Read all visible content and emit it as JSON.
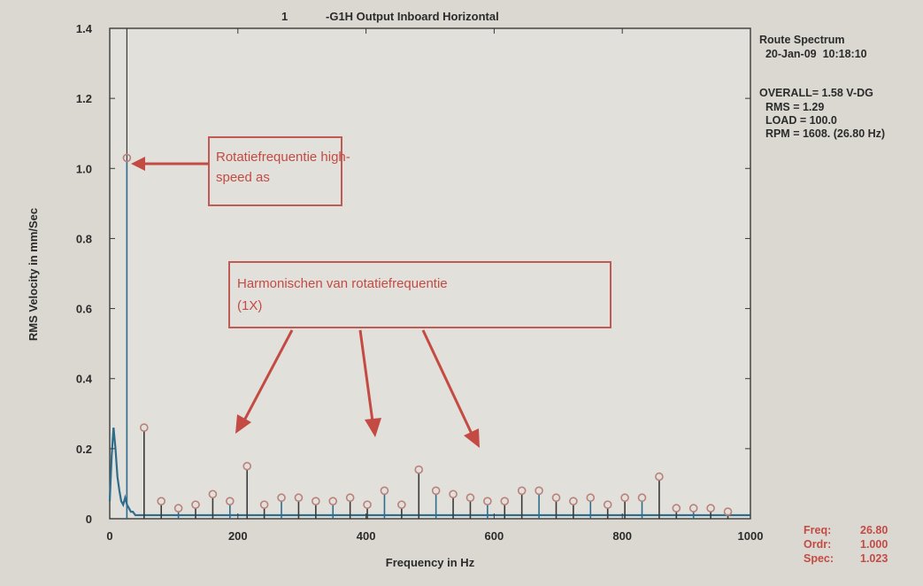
{
  "chart_data": {
    "type": "line",
    "title_prefix": "1",
    "title": "-G1H   Output Inboard Horizontal",
    "xlabel": "Frequency in Hz",
    "ylabel": "RMS Velocity in mm/Sec",
    "xlim": [
      0,
      1000
    ],
    "ylim": [
      0,
      1.4
    ],
    "xticks": [
      "0",
      "200",
      "400",
      "600",
      "800",
      "1000"
    ],
    "yticks": [
      "0",
      "0.2",
      "0.4",
      "0.6",
      "0.8",
      "1.0",
      "1.2",
      "1.4"
    ],
    "grid": false,
    "series": [
      {
        "x": [
          0,
          3,
          6,
          9,
          12,
          15,
          18,
          21,
          24,
          27,
          30,
          33,
          36,
          40,
          45,
          50,
          55,
          60,
          80,
          100,
          120,
          140,
          160,
          180,
          200,
          220,
          240,
          260,
          280,
          300,
          320,
          340,
          360,
          380,
          400,
          420,
          440,
          460,
          480,
          500,
          520,
          540,
          560,
          580,
          600,
          620,
          640,
          660,
          680,
          700,
          720,
          740,
          760,
          780,
          800,
          820,
          840,
          860,
          880,
          900,
          920,
          940,
          960,
          980,
          1000
        ],
        "values": [
          0.05,
          0.18,
          0.26,
          0.2,
          0.12,
          0.08,
          0.05,
          0.04,
          0.06,
          0.04,
          0.03,
          0.02,
          0.02,
          0.01,
          0.01,
          0.01,
          0.01,
          0.01,
          0.01,
          0.01,
          0.01,
          0.01,
          0.01,
          0.01,
          0.01,
          0.01,
          0.01,
          0.01,
          0.01,
          0.01,
          0.01,
          0.01,
          0.01,
          0.01,
          0.01,
          0.01,
          0.01,
          0.01,
          0.01,
          0.01,
          0.01,
          0.01,
          0.01,
          0.01,
          0.01,
          0.01,
          0.01,
          0.01,
          0.01,
          0.01,
          0.01,
          0.01,
          0.01,
          0.01,
          0.01,
          0.01,
          0.01,
          0.01,
          0.01,
          0.01,
          0.01,
          0.01,
          0.01,
          0.01,
          0.01
        ]
      }
    ],
    "stems": {
      "x": [
        26.8,
        53.6,
        80.4,
        107.2,
        134.0,
        160.8,
        187.6,
        214.4,
        241.2,
        268.0,
        294.8,
        321.6,
        348.4,
        375.2,
        402.0,
        428.8,
        455.6,
        482.4,
        509.2,
        536.0,
        562.8,
        589.6,
        616.4,
        643.2,
        670.0,
        696.8,
        723.6,
        750.4,
        777.2,
        804.0,
        830.8,
        857.6,
        884.4,
        911.2,
        938.0,
        964.8
      ],
      "values": [
        1.02,
        0.25,
        0.04,
        0.02,
        0.03,
        0.06,
        0.04,
        0.14,
        0.03,
        0.05,
        0.05,
        0.04,
        0.04,
        0.05,
        0.03,
        0.07,
        0.03,
        0.13,
        0.07,
        0.06,
        0.05,
        0.04,
        0.04,
        0.07,
        0.07,
        0.05,
        0.04,
        0.05,
        0.03,
        0.05,
        0.05,
        0.11,
        0.02,
        0.02,
        0.02,
        0.01
      ]
    },
    "cursor_x": 26.8
  },
  "info": {
    "lines": [
      "Route Spectrum",
      "  20-Jan-09  10:18:10",
      "",
      "OVERALL= 1.58 V-DG",
      "  RMS = 1.29",
      "  LOAD = 100.0",
      "  RPM = 1608. (26.80 Hz)"
    ]
  },
  "cursor_readout": {
    "labels": [
      "Freq:",
      "Ordr:",
      "Spec:"
    ],
    "values": [
      "26.80",
      "1.000",
      "1.023"
    ]
  },
  "annotations": [
    {
      "text_lines": [
        "Rotatiefrequentie high-",
        "speed as"
      ]
    },
    {
      "text_lines": [
        "Harmonischen van rotatiefrequentie",
        "(1X)"
      ]
    }
  ]
}
